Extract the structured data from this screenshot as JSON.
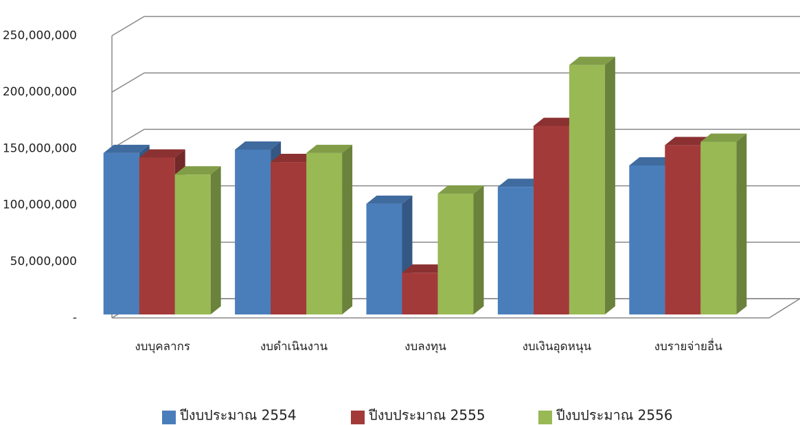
{
  "chart_data": {
    "type": "bar3d",
    "categories": [
      "งบบุคลากร",
      "งบดำเนินงาน",
      "งบลงทุน",
      "งบเงินอุดหนุน",
      "งบรายจ่ายอื่น"
    ],
    "series": [
      {
        "name": "ปีงบประมาณ 2554",
        "color": "#4a7ebb",
        "values": [
          143000000,
          146000000,
          98000000,
          113000000,
          132000000
        ]
      },
      {
        "name": "ปีงบประมาณ 2555",
        "color": "#a33a3a",
        "values": [
          139000000,
          135000000,
          37000000,
          167000000,
          150000000
        ]
      },
      {
        "name": "ปีงบประมาณ 2556",
        "color": "#98b954",
        "values": [
          124000000,
          143000000,
          107000000,
          221000000,
          153000000
        ]
      }
    ],
    "ylim": [
      0,
      250000000
    ],
    "yticks": [
      {
        "value": 0,
        "label": "-"
      },
      {
        "value": 50000000,
        "label": "50,000,000"
      },
      {
        "value": 100000000,
        "label": "100,000,000"
      },
      {
        "value": 150000000,
        "label": "150,000,000"
      },
      {
        "value": 200000000,
        "label": "200,000,000"
      },
      {
        "value": 250000000,
        "label": "250,000,000"
      }
    ],
    "grid": true,
    "legend": "bottom"
  }
}
